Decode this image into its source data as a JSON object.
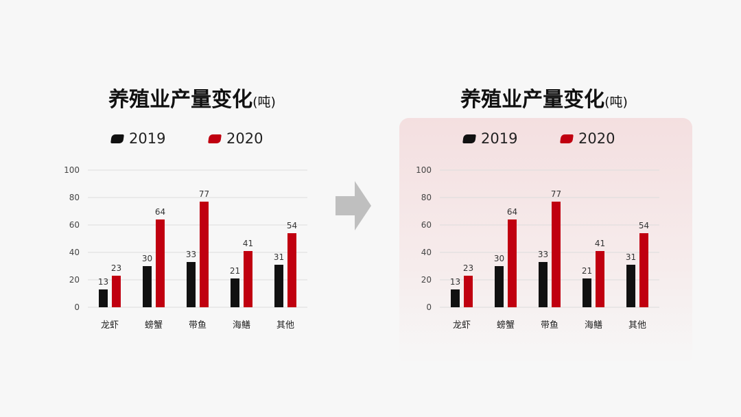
{
  "colors": {
    "series_2019": "#111111",
    "series_2020": "#c00010",
    "arrow": "#bfbfbf",
    "grid": "#dcdcdc"
  },
  "panels": [
    {
      "title": "养殖业产量变化",
      "title_unit": "(吨)",
      "legend": [
        "2019",
        "2020"
      ]
    },
    {
      "title": "养殖业产量变化",
      "title_unit": "(吨)",
      "legend": [
        "2019",
        "2020"
      ]
    }
  ],
  "chart_data": [
    {
      "type": "bar",
      "title": "养殖业产量变化(吨)",
      "categories": [
        "龙虾",
        "螃蟹",
        "带鱼",
        "海鳝",
        "其他"
      ],
      "series": [
        {
          "name": "2019",
          "values": [
            13,
            30,
            33,
            21,
            31
          ]
        },
        {
          "name": "2020",
          "values": [
            23,
            64,
            77,
            41,
            54
          ]
        }
      ],
      "yticks": [
        "0",
        "20",
        "40",
        "60",
        "80",
        "100"
      ],
      "ylim": [
        0,
        100
      ],
      "grid": true,
      "legend_position": "top",
      "data_labels": true
    },
    {
      "type": "bar",
      "title": "养殖业产量变化(吨)",
      "categories": [
        "龙虾",
        "螃蟹",
        "带鱼",
        "海鳝",
        "其他"
      ],
      "series": [
        {
          "name": "2019",
          "values": [
            13,
            30,
            33,
            21,
            31
          ]
        },
        {
          "name": "2020",
          "values": [
            23,
            64,
            77,
            41,
            54
          ]
        }
      ],
      "yticks": [
        "0",
        "20",
        "40",
        "60",
        "80",
        "100"
      ],
      "ylim": [
        0,
        100
      ],
      "grid": true,
      "legend_position": "top",
      "data_labels": true
    }
  ]
}
